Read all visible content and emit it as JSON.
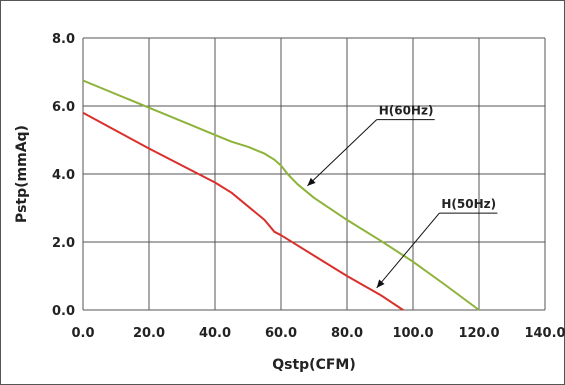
{
  "chart_data": {
    "type": "line",
    "title": "",
    "xlabel": "Qstp(CFM)",
    "ylabel": "Pstp(mmAq)",
    "xlim": [
      0,
      140
    ],
    "ylim": [
      0,
      8
    ],
    "x_ticks": [
      "0.0",
      "20.0",
      "40.0",
      "60.0",
      "80.0",
      "100.0",
      "120.0",
      "140.0"
    ],
    "y_ticks": [
      "0.0",
      "2.0",
      "4.0",
      "6.0",
      "8.0"
    ],
    "grid": true,
    "series": [
      {
        "name": "H(60Hz)",
        "color": "#8db33a",
        "x": [
          0,
          20,
          40,
          45,
          50,
          55,
          58,
          60,
          62,
          65,
          70,
          80,
          90,
          100,
          110,
          120
        ],
        "y": [
          6.75,
          5.95,
          5.15,
          4.95,
          4.8,
          4.6,
          4.42,
          4.25,
          4.0,
          3.7,
          3.3,
          2.65,
          2.05,
          1.42,
          0.72,
          0.0
        ]
      },
      {
        "name": "H(50Hz)",
        "color": "#d9302c",
        "x": [
          0,
          20,
          40,
          45,
          50,
          55,
          58,
          60,
          70,
          80,
          90,
          97
        ],
        "y": [
          5.8,
          4.75,
          3.75,
          3.45,
          3.05,
          2.65,
          2.3,
          2.2,
          1.6,
          1.0,
          0.45,
          0.0
        ]
      }
    ],
    "annotations": [
      {
        "text": "H(60Hz)",
        "series": 0,
        "label_at": [
          89,
          5.6
        ],
        "arrow_to": [
          68,
          3.65
        ]
      },
      {
        "text": "H(50Hz)",
        "series": 1,
        "label_at": [
          108,
          2.85
        ],
        "arrow_to": [
          89,
          0.65
        ]
      }
    ]
  }
}
